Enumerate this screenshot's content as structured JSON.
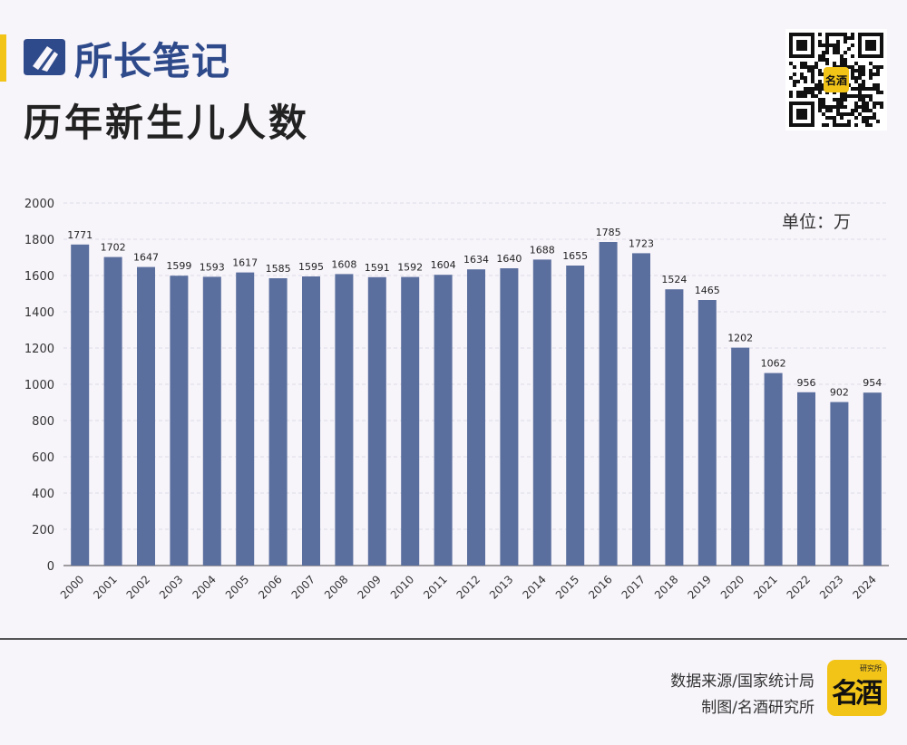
{
  "brand": {
    "name": "所长笔记"
  },
  "title": "历年新生儿人数",
  "unit_label": "单位：万",
  "footer": {
    "source": "数据来源/国家统计局",
    "credit": "制图/名酒研究所",
    "logo_text": "名酒",
    "logo_small": "研究所"
  },
  "qr": {
    "center_text": "名酒"
  },
  "colors": {
    "bar": "#5b6f9e",
    "accent": "#f2c418",
    "brand": "#2f4a8a"
  },
  "chart_data": {
    "type": "bar",
    "title": "历年新生儿人数",
    "ylabel": "",
    "xlabel": "",
    "unit": "万",
    "ylim": [
      0,
      2000
    ],
    "yticks": [
      0,
      200,
      400,
      600,
      800,
      1000,
      1200,
      1400,
      1600,
      1800,
      2000
    ],
    "grid": true,
    "categories": [
      "2000",
      "2001",
      "2002",
      "2003",
      "2004",
      "2005",
      "2006",
      "2007",
      "2008",
      "2009",
      "2010",
      "2011",
      "2012",
      "2013",
      "2014",
      "2015",
      "2016",
      "2017",
      "2018",
      "2019",
      "2020",
      "2021",
      "2022",
      "2023",
      "2024"
    ],
    "values": [
      1771,
      1702,
      1647,
      1599,
      1593,
      1617,
      1585,
      1595,
      1608,
      1591,
      1592,
      1604,
      1634,
      1640,
      1688,
      1655,
      1785,
      1723,
      1524,
      1465,
      1202,
      1062,
      956,
      902,
      954
    ]
  }
}
